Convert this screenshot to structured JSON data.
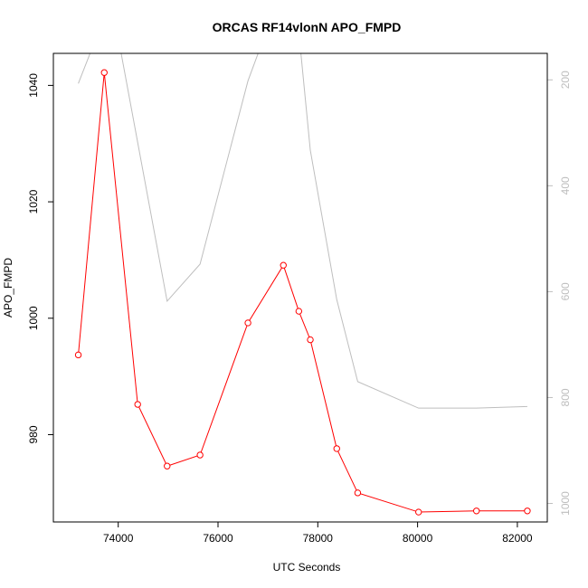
{
  "chart_data": {
    "type": "line",
    "title": "ORCAS RF14vlonN APO_FMPD",
    "xlabel": "UTC Seconds",
    "ylabel": "APO_FMPD",
    "xlim": [
      72700,
      82600
    ],
    "ylim": [
      965,
      1045.5
    ],
    "x_ticks": [
      74000,
      76000,
      78000,
      80000,
      82000
    ],
    "y_ticks": [
      980,
      1000,
      1020,
      1040
    ],
    "y2_ticks": [
      200,
      400,
      600,
      800,
      1000
    ],
    "y2_reversed": true,
    "y2lim": [
      1035,
      150
    ],
    "grid": false,
    "colors": {
      "primary": "#ff0000",
      "secondary": "#bebebe",
      "frame": "#000000"
    },
    "series": [
      {
        "role": "primary",
        "axis": "left",
        "marker": "open-circle",
        "x": [
          73200,
          73720,
          74390,
          74980,
          75640,
          76600,
          77310,
          77620,
          77850,
          78380,
          78800,
          80020,
          81180,
          82200
        ],
        "y": [
          993.7,
          1042.2,
          985.2,
          974.6,
          976.5,
          999.2,
          1009.1,
          1001.2,
          996.3,
          977.6,
          970.0,
          966.7,
          966.9,
          966.9
        ]
      },
      {
        "role": "secondary",
        "axis": "right",
        "x": [
          73200,
          73560,
          73980,
          74980,
          75640,
          76600,
          77000,
          77620,
          77850,
          78380,
          78800,
          80020,
          81180,
          82200
        ],
        "y": [
          207,
          120,
          110,
          618,
          548,
          202,
          100,
          110,
          333,
          615,
          770,
          820,
          820,
          817
        ]
      }
    ]
  }
}
